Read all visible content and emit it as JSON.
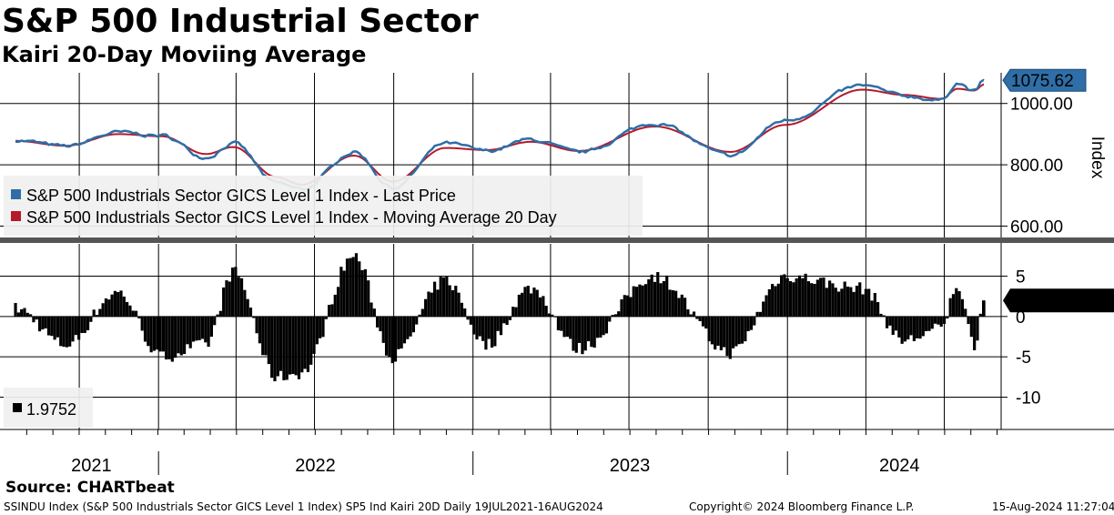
{
  "header": {
    "title": "S&P 500 Industrial Sector",
    "subtitle": "Kairi 20-Day Moviing Average"
  },
  "footer": {
    "source": "Source: CHARTbeat",
    "description": "SSINDU Index (S&P 500 Industrials Sector GICS Level 1 Index) SP5 Ind Kairi 20D  Daily 19JUL2021-16AUG2024",
    "copyright": "Copyright© 2024 Bloomberg Finance L.P.",
    "timestamp": "15-Aug-2024 11:27:04"
  },
  "colors": {
    "price": "#2f6ea6",
    "moving_average": "#b5192c",
    "kairi": "#000000",
    "grid": "#000000"
  },
  "chart_data": [
    {
      "type": "line",
      "ylabel": "Index",
      "ylim": [
        560,
        1100
      ],
      "yticks": [
        "600.00",
        "800.00",
        "1000.00"
      ],
      "x_categories": [
        "2021",
        "2022",
        "2023",
        "2024"
      ],
      "last_value_label": "1075.62",
      "legend": "top-left",
      "grid": true,
      "x": [
        "2021-07-19",
        "2021-09-15",
        "2021-11-15",
        "2022-01-05",
        "2022-02-25",
        "2022-03-29",
        "2022-05-18",
        "2022-06-16",
        "2022-08-16",
        "2022-09-30",
        "2022-11-30",
        "2023-01-17",
        "2023-03-09",
        "2023-05-04",
        "2023-07-31",
        "2023-10-27",
        "2023-12-29",
        "2024-03-28",
        "2024-05-15",
        "2024-06-28",
        "2024-07-16",
        "2024-08-05",
        "2024-08-16"
      ],
      "series": [
        {
          "name": "S&P 500 Industrials Sector GICS Level 1 Index - Last Price",
          "values": [
            880,
            860,
            905,
            895,
            825,
            870,
            740,
            720,
            842,
            725,
            870,
            845,
            882,
            840,
            935,
            830,
            945,
            1058,
            1025,
            1010,
            1068,
            1040,
            1075.62
          ]
        },
        {
          "name": "S&P 500 Industrials Sector GICS Level 1 Index - Moving Average 20 Day",
          "values": [
            878,
            862,
            900,
            893,
            835,
            858,
            760,
            735,
            830,
            745,
            855,
            848,
            875,
            845,
            925,
            842,
            930,
            1045,
            1028,
            1015,
            1048,
            1042,
            1062
          ]
        }
      ]
    },
    {
      "type": "bar",
      "ylim": [
        -14,
        9
      ],
      "yticks": [
        "5",
        "0",
        "-5",
        "-10"
      ],
      "last_value_label": "1.9752",
      "legend_value": "1.9752",
      "grid": true,
      "x": [
        "2021-07-19",
        "2021-09-15",
        "2021-11-15",
        "2022-01-05",
        "2022-02-25",
        "2022-03-29",
        "2022-05-18",
        "2022-06-16",
        "2022-08-16",
        "2022-09-30",
        "2022-11-30",
        "2023-01-17",
        "2023-03-09",
        "2023-05-04",
        "2023-07-31",
        "2023-10-27",
        "2023-12-29",
        "2024-03-28",
        "2024-05-15",
        "2024-06-28",
        "2024-07-16",
        "2024-08-05",
        "2024-08-16"
      ],
      "values": [
        1.0,
        -3.5,
        3.0,
        -5.0,
        -3.5,
        5.5,
        -7.5,
        -7.0,
        7.5,
        -5.0,
        4.5,
        -3.5,
        3.5,
        -4.0,
        5.0,
        -4.5,
        5.0,
        3.5,
        -3.0,
        -1.5,
        4.0,
        -3.5,
        1.9752
      ]
    }
  ]
}
